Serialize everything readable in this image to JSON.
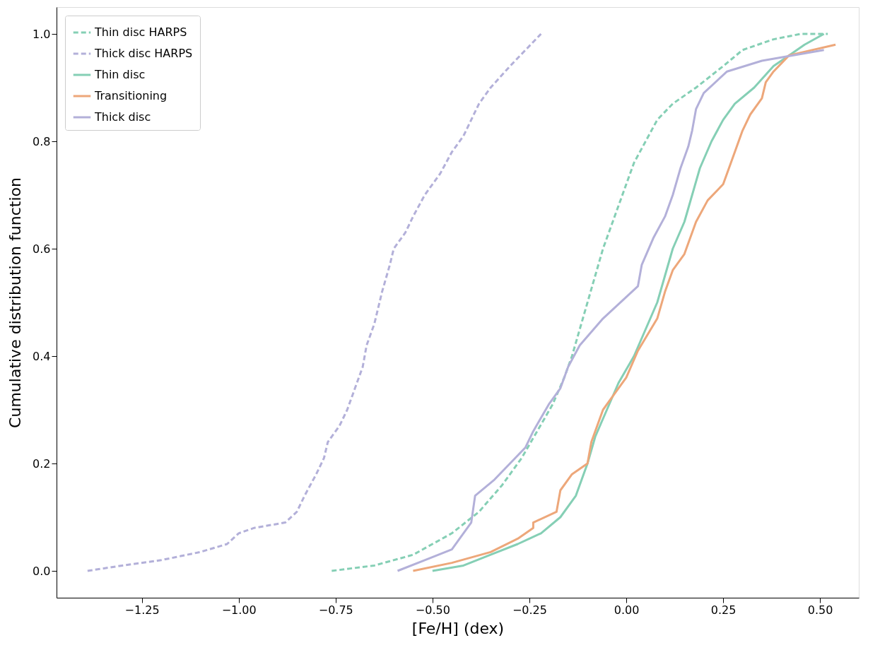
{
  "chart_data": {
    "type": "line",
    "xlabel": "[Fe/H] (dex)",
    "ylabel": "Cumulative distribution function",
    "xlim": [
      -1.47,
      0.6
    ],
    "ylim": [
      -0.05,
      1.05
    ],
    "xticks": [
      {
        "value": -1.25,
        "label": "−1.25"
      },
      {
        "value": -1.0,
        "label": "−1.00"
      },
      {
        "value": -0.75,
        "label": "−0.75"
      },
      {
        "value": -0.5,
        "label": "−0.50"
      },
      {
        "value": -0.25,
        "label": "−0.25"
      },
      {
        "value": 0,
        "label": "0.00"
      },
      {
        "value": 0.25,
        "label": "0.25"
      },
      {
        "value": 0.5,
        "label": "0.50"
      }
    ],
    "yticks": [
      {
        "value": 0,
        "label": "0.0"
      },
      {
        "value": 0.2,
        "label": "0.2"
      },
      {
        "value": 0.4,
        "label": "0.4"
      },
      {
        "value": 0.6,
        "label": "0.6"
      },
      {
        "value": 0.8,
        "label": "0.8"
      },
      {
        "value": 1,
        "label": "1.0"
      }
    ],
    "grid": false,
    "legend": "top left",
    "marker": "none",
    "series": [
      {
        "name": "Thin disc HARPS",
        "color": "#85cfb5",
        "line_style": "dashed",
        "x": [
          -0.76,
          -0.65,
          -0.55,
          -0.45,
          -0.38,
          -0.32,
          -0.27,
          -0.23,
          -0.19,
          -0.16,
          -0.14,
          -0.12,
          -0.1,
          -0.08,
          -0.06,
          -0.04,
          -0.02,
          0.0,
          0.02,
          0.05,
          0.08,
          0.12,
          0.18,
          0.25,
          0.3,
          0.38,
          0.45,
          0.52
        ],
        "values": [
          0,
          0.01,
          0.03,
          0.07,
          0.11,
          0.16,
          0.21,
          0.26,
          0.31,
          0.36,
          0.4,
          0.45,
          0.5,
          0.55,
          0.6,
          0.64,
          0.68,
          0.72,
          0.76,
          0.8,
          0.84,
          0.87,
          0.9,
          0.94,
          0.97,
          0.99,
          1.0,
          1.0
        ]
      },
      {
        "name": "Thick disc HARPS",
        "color": "#b3b0d9",
        "line_style": "dashed",
        "x": [
          -1.39,
          -1.3,
          -1.2,
          -1.1,
          -1.03,
          -1.0,
          -0.96,
          -0.88,
          -0.85,
          -0.83,
          -0.8,
          -0.78,
          -0.77,
          -0.74,
          -0.72,
          -0.7,
          -0.68,
          -0.67,
          -0.65,
          -0.63,
          -0.61,
          -0.6,
          -0.57,
          -0.55,
          -0.52,
          -0.48,
          -0.45,
          -0.42,
          -0.4,
          -0.38,
          -0.35,
          -0.3,
          -0.26,
          -0.22
        ],
        "values": [
          0,
          0.01,
          0.02,
          0.035,
          0.05,
          0.07,
          0.08,
          0.09,
          0.11,
          0.14,
          0.18,
          0.21,
          0.24,
          0.27,
          0.3,
          0.34,
          0.38,
          0.42,
          0.46,
          0.52,
          0.57,
          0.6,
          0.63,
          0.66,
          0.7,
          0.74,
          0.78,
          0.81,
          0.84,
          0.87,
          0.9,
          0.94,
          0.97,
          1.0
        ]
      },
      {
        "name": "Thin disc",
        "color": "#85cfb5",
        "line_style": "solid",
        "x": [
          -0.5,
          -0.42,
          -0.35,
          -0.28,
          -0.22,
          -0.17,
          -0.13,
          -0.1,
          -0.08,
          -0.05,
          -0.02,
          0.02,
          0.05,
          0.08,
          0.1,
          0.12,
          0.15,
          0.17,
          0.19,
          0.22,
          0.25,
          0.28,
          0.33,
          0.38,
          0.42,
          0.46,
          0.51
        ],
        "values": [
          0,
          0.01,
          0.03,
          0.05,
          0.07,
          0.1,
          0.14,
          0.2,
          0.25,
          0.3,
          0.35,
          0.4,
          0.45,
          0.5,
          0.55,
          0.6,
          0.65,
          0.7,
          0.75,
          0.8,
          0.84,
          0.87,
          0.9,
          0.94,
          0.96,
          0.98,
          1.0
        ]
      },
      {
        "name": "Transitioning",
        "color": "#eda77a",
        "line_style": "solid",
        "x": [
          -0.55,
          -0.45,
          -0.35,
          -0.28,
          -0.24,
          -0.24,
          -0.18,
          -0.17,
          -0.14,
          -0.1,
          -0.09,
          -0.06,
          -0.03,
          0.0,
          0.03,
          0.08,
          0.1,
          0.12,
          0.15,
          0.18,
          0.21,
          0.25,
          0.28,
          0.3,
          0.32,
          0.35,
          0.36,
          0.38,
          0.42,
          0.54
        ],
        "values": [
          0,
          0.015,
          0.035,
          0.06,
          0.08,
          0.09,
          0.11,
          0.15,
          0.18,
          0.2,
          0.24,
          0.3,
          0.33,
          0.36,
          0.41,
          0.47,
          0.52,
          0.56,
          0.59,
          0.65,
          0.69,
          0.72,
          0.78,
          0.82,
          0.85,
          0.88,
          0.91,
          0.93,
          0.96,
          0.98
        ]
      },
      {
        "name": "Thick disc",
        "color": "#b3b0d9",
        "line_style": "solid",
        "x": [
          -0.59,
          -0.52,
          -0.45,
          -0.4,
          -0.39,
          -0.34,
          -0.26,
          -0.24,
          -0.2,
          -0.17,
          -0.15,
          -0.12,
          -0.06,
          0.0,
          0.03,
          0.04,
          0.07,
          0.1,
          0.12,
          0.14,
          0.16,
          0.17,
          0.18,
          0.2,
          0.26,
          0.35,
          0.51
        ],
        "values": [
          0,
          0.02,
          0.04,
          0.09,
          0.14,
          0.17,
          0.23,
          0.26,
          0.31,
          0.34,
          0.38,
          0.42,
          0.47,
          0.51,
          0.53,
          0.57,
          0.62,
          0.66,
          0.7,
          0.75,
          0.79,
          0.82,
          0.86,
          0.89,
          0.93,
          0.95,
          0.97
        ]
      }
    ]
  }
}
